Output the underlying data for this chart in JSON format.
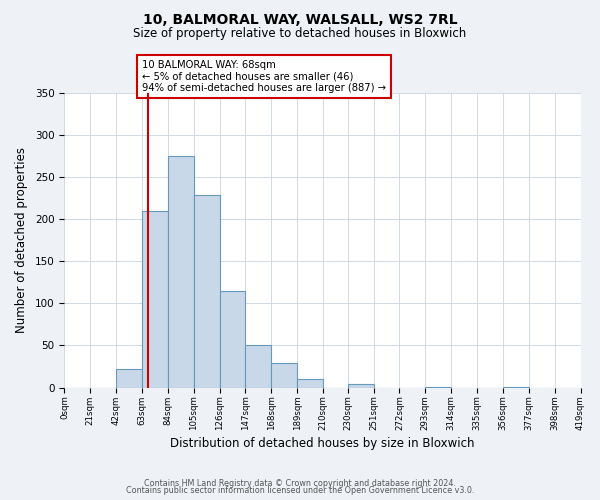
{
  "title": "10, BALMORAL WAY, WALSALL, WS2 7RL",
  "subtitle": "Size of property relative to detached houses in Bloxwich",
  "xlabel": "Distribution of detached houses by size in Bloxwich",
  "ylabel": "Number of detached properties",
  "bin_edges": [
    0,
    21,
    42,
    63,
    84,
    105,
    126,
    147,
    168,
    189,
    210,
    230,
    251,
    272,
    293,
    314,
    335,
    356,
    377,
    398,
    419
  ],
  "bar_heights": [
    0,
    0,
    22,
    210,
    275,
    229,
    115,
    50,
    29,
    10,
    0,
    4,
    0,
    0,
    1,
    0,
    0,
    1,
    0,
    0
  ],
  "bar_color": "#c8d8e8",
  "bar_edgecolor": "#6699bb",
  "vline_x": 68,
  "vline_color": "#cc0000",
  "ylim": [
    0,
    350
  ],
  "yticks": [
    0,
    50,
    100,
    150,
    200,
    250,
    300,
    350
  ],
  "xtick_labels": [
    "0sqm",
    "21sqm",
    "42sqm",
    "63sqm",
    "84sqm",
    "105sqm",
    "126sqm",
    "147sqm",
    "168sqm",
    "189sqm",
    "210sqm",
    "230sqm",
    "251sqm",
    "272sqm",
    "293sqm",
    "314sqm",
    "335sqm",
    "356sqm",
    "377sqm",
    "398sqm",
    "419sqm"
  ],
  "annotation_text": "10 BALMORAL WAY: 68sqm\n← 5% of detached houses are smaller (46)\n94% of semi-detached houses are larger (887) →",
  "annotation_boxcolor": "white",
  "annotation_edgecolor": "#cc0000",
  "footer1": "Contains HM Land Registry data © Crown copyright and database right 2024.",
  "footer2": "Contains public sector information licensed under the Open Government Licence v3.0.",
  "background_color": "#eef2f6",
  "plot_bg_color": "white",
  "grid_color": "#c8d4e0"
}
